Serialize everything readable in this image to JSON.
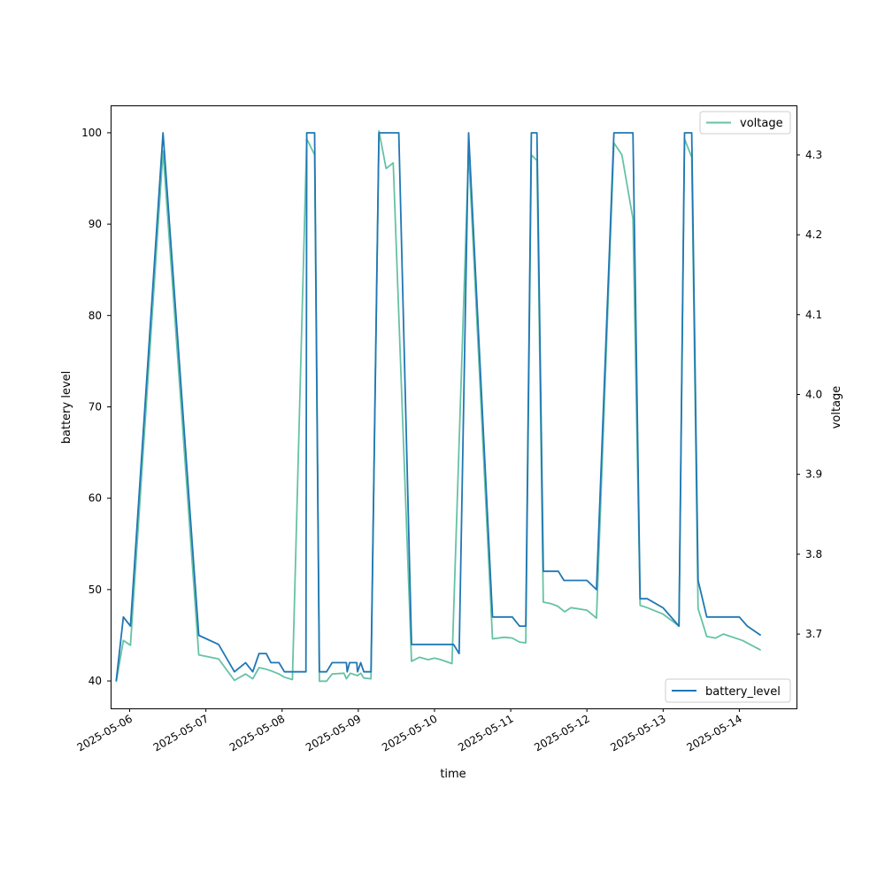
{
  "chart_data": {
    "type": "line",
    "xlabel": "time",
    "x_ticks": [
      "2025-05-06",
      "2025-05-07",
      "2025-05-08",
      "2025-05-09",
      "2025-05-10",
      "2025-05-11",
      "2025-05-12",
      "2025-05-13",
      "2025-05-14"
    ],
    "x_range": [
      "2025-05-05T18:00",
      "2025-05-14T18:00"
    ],
    "left_axis": {
      "label": "battery level",
      "ylim": [
        37,
        103
      ],
      "ticks": [
        40,
        50,
        60,
        70,
        80,
        90,
        100
      ]
    },
    "right_axis": {
      "label": "voltage",
      "ylim": [
        3.607,
        4.362
      ],
      "ticks": [
        3.7,
        3.8,
        3.9,
        4.0,
        4.1,
        4.2,
        4.3
      ]
    },
    "series": [
      {
        "name": "battery_level",
        "axis": "left",
        "color": "#1f77b4",
        "legend_location": "lower right",
        "points": [
          [
            "2025-05-05T19:45",
            40
          ],
          [
            "2025-05-05T22:00",
            47
          ],
          [
            "2025-05-06T00:15",
            46
          ],
          [
            "2025-05-06T10:30",
            100
          ],
          [
            "2025-05-06T21:45",
            45
          ],
          [
            "2025-05-07T04:00",
            44
          ],
          [
            "2025-05-07T09:00",
            41
          ],
          [
            "2025-05-07T12:30",
            42
          ],
          [
            "2025-05-07T14:45",
            41
          ],
          [
            "2025-05-07T16:45",
            43
          ],
          [
            "2025-05-07T19:00",
            43
          ],
          [
            "2025-05-07T20:30",
            42
          ],
          [
            "2025-05-07T23:00",
            42
          ],
          [
            "2025-05-08T00:45",
            41
          ],
          [
            "2025-05-08T07:30",
            41
          ],
          [
            "2025-05-08T07:45",
            100
          ],
          [
            "2025-05-08T10:15",
            100
          ],
          [
            "2025-05-08T11:45",
            41
          ],
          [
            "2025-05-08T14:00",
            41
          ],
          [
            "2025-05-08T15:45",
            42
          ],
          [
            "2025-05-08T20:15",
            42
          ],
          [
            "2025-05-08T20:30",
            41
          ],
          [
            "2025-05-08T21:15",
            42
          ],
          [
            "2025-05-08T23:30",
            42
          ],
          [
            "2025-05-08T23:45",
            41
          ],
          [
            "2025-05-09T00:45",
            42
          ],
          [
            "2025-05-09T01:45",
            41
          ],
          [
            "2025-05-09T04:00",
            41
          ],
          [
            "2025-05-09T06:30",
            100
          ],
          [
            "2025-05-09T12:45",
            100
          ],
          [
            "2025-05-09T16:45",
            44
          ],
          [
            "2025-05-10T06:00",
            44
          ],
          [
            "2025-05-10T07:45",
            43
          ],
          [
            "2025-05-10T10:45",
            100
          ],
          [
            "2025-05-10T18:15",
            47
          ],
          [
            "2025-05-11T00:30",
            47
          ],
          [
            "2025-05-11T02:45",
            46
          ],
          [
            "2025-05-11T04:45",
            46
          ],
          [
            "2025-05-11T06:30",
            100
          ],
          [
            "2025-05-11T08:15",
            100
          ],
          [
            "2025-05-11T10:15",
            52
          ],
          [
            "2025-05-11T15:00",
            52
          ],
          [
            "2025-05-11T16:45",
            51
          ],
          [
            "2025-05-12T00:00",
            51
          ],
          [
            "2025-05-12T03:00",
            50
          ],
          [
            "2025-05-12T08:30",
            100
          ],
          [
            "2025-05-12T14:30",
            100
          ],
          [
            "2025-05-12T16:45",
            49
          ],
          [
            "2025-05-12T19:00",
            49
          ],
          [
            "2025-05-13T00:00",
            48
          ],
          [
            "2025-05-13T05:00",
            46
          ],
          [
            "2025-05-13T06:45",
            100
          ],
          [
            "2025-05-13T09:00",
            100
          ],
          [
            "2025-05-13T11:00",
            51
          ],
          [
            "2025-05-13T13:45",
            47
          ],
          [
            "2025-05-14T00:00",
            47
          ],
          [
            "2025-05-14T02:30",
            46
          ],
          [
            "2025-05-14T06:45",
            45
          ]
        ]
      },
      {
        "name": "voltage",
        "axis": "right",
        "color": "#66c2a5",
        "legend_location": "upper right",
        "points": [
          [
            "2025-05-05T19:45",
            3.64
          ],
          [
            "2025-05-05T22:00",
            3.692
          ],
          [
            "2025-05-06T00:15",
            3.686
          ],
          [
            "2025-05-06T10:30",
            4.305
          ],
          [
            "2025-05-06T21:45",
            3.674
          ],
          [
            "2025-05-07T04:00",
            3.669
          ],
          [
            "2025-05-07T09:00",
            3.642
          ],
          [
            "2025-05-07T12:30",
            3.65
          ],
          [
            "2025-05-07T14:45",
            3.644
          ],
          [
            "2025-05-07T16:45",
            3.658
          ],
          [
            "2025-05-07T19:00",
            3.656
          ],
          [
            "2025-05-07T20:30",
            3.654
          ],
          [
            "2025-05-07T23:00",
            3.65
          ],
          [
            "2025-05-08T00:45",
            3.646
          ],
          [
            "2025-05-08T03:15",
            3.643
          ],
          [
            "2025-05-08T07:45",
            4.32
          ],
          [
            "2025-05-08T10:15",
            4.3
          ],
          [
            "2025-05-08T11:45",
            3.641
          ],
          [
            "2025-05-08T14:00",
            3.641
          ],
          [
            "2025-05-08T15:45",
            3.65
          ],
          [
            "2025-05-08T19:30",
            3.651
          ],
          [
            "2025-05-08T20:15",
            3.644
          ],
          [
            "2025-05-08T21:30",
            3.651
          ],
          [
            "2025-05-08T23:00",
            3.649
          ],
          [
            "2025-05-08T23:45",
            3.648
          ],
          [
            "2025-05-09T00:45",
            3.651
          ],
          [
            "2025-05-09T01:45",
            3.645
          ],
          [
            "2025-05-09T04:00",
            3.644
          ],
          [
            "2025-05-09T06:30",
            4.33
          ],
          [
            "2025-05-09T08:45",
            4.283
          ],
          [
            "2025-05-09T11:00",
            4.29
          ],
          [
            "2025-05-09T16:45",
            3.666
          ],
          [
            "2025-05-09T19:15",
            3.671
          ],
          [
            "2025-05-09T22:00",
            3.668
          ],
          [
            "2025-05-10T00:00",
            3.67
          ],
          [
            "2025-05-10T02:00",
            3.668
          ],
          [
            "2025-05-10T05:30",
            3.663
          ],
          [
            "2025-05-10T10:45",
            4.305
          ],
          [
            "2025-05-10T18:15",
            3.694
          ],
          [
            "2025-05-10T22:00",
            3.696
          ],
          [
            "2025-05-11T00:30",
            3.695
          ],
          [
            "2025-05-11T02:45",
            3.69
          ],
          [
            "2025-05-11T04:45",
            3.689
          ],
          [
            "2025-05-11T06:30",
            4.3
          ],
          [
            "2025-05-11T08:15",
            4.293
          ],
          [
            "2025-05-11T10:15",
            3.74
          ],
          [
            "2025-05-11T12:45",
            3.738
          ],
          [
            "2025-05-11T14:45",
            3.735
          ],
          [
            "2025-05-11T17:00",
            3.728
          ],
          [
            "2025-05-11T19:00",
            3.733
          ],
          [
            "2025-05-12T00:00",
            3.73
          ],
          [
            "2025-05-12T03:00",
            3.72
          ],
          [
            "2025-05-12T08:30",
            4.315
          ],
          [
            "2025-05-12T11:00",
            4.3
          ],
          [
            "2025-05-12T14:30",
            4.22
          ],
          [
            "2025-05-12T16:45",
            3.736
          ],
          [
            "2025-05-12T19:00",
            3.733
          ],
          [
            "2025-05-13T00:00",
            3.725
          ],
          [
            "2025-05-13T05:00",
            3.71
          ],
          [
            "2025-05-13T06:45",
            4.32
          ],
          [
            "2025-05-13T09:00",
            4.297
          ],
          [
            "2025-05-13T11:00",
            3.732
          ],
          [
            "2025-05-13T13:45",
            3.697
          ],
          [
            "2025-05-13T16:30",
            3.695
          ],
          [
            "2025-05-13T19:00",
            3.7
          ],
          [
            "2025-05-14T01:00",
            3.692
          ],
          [
            "2025-05-14T06:45",
            3.68
          ]
        ]
      }
    ]
  }
}
